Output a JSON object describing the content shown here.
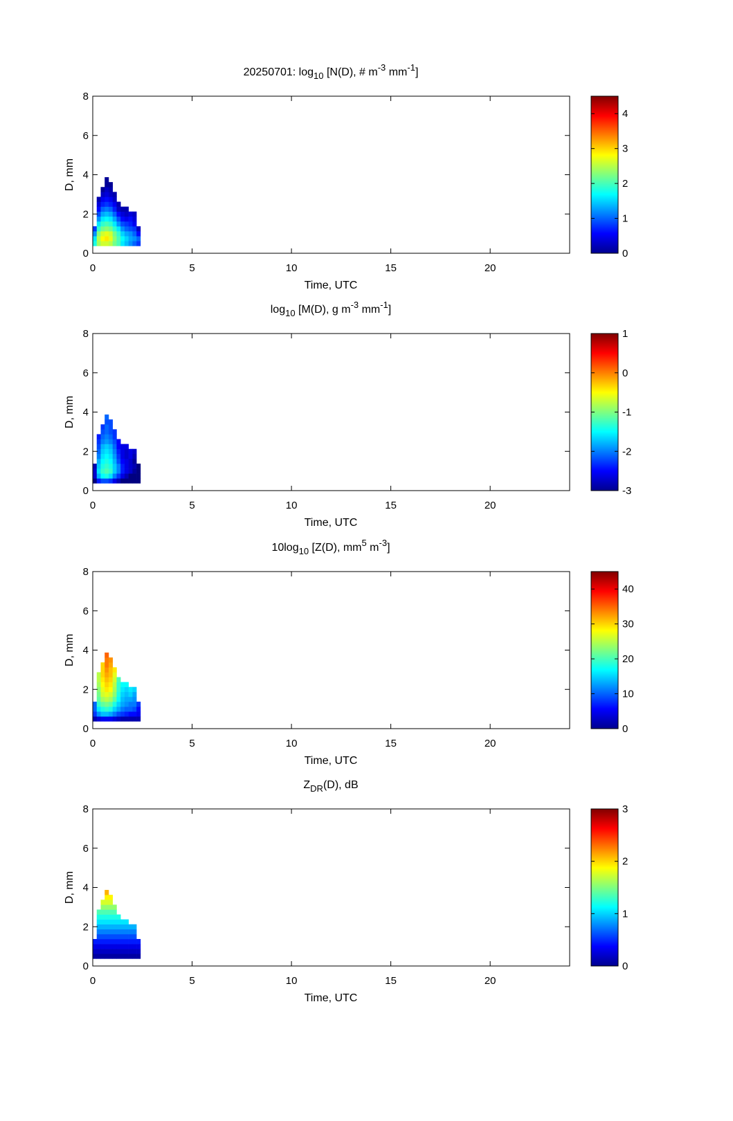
{
  "chart_data": [
    {
      "type": "heatmap",
      "title_parts": [
        {
          "t": "20250701: log"
        },
        {
          "t": "10",
          "sub": true
        },
        {
          "t": " [N(D), # m"
        },
        {
          "t": "-3",
          "sup": true
        },
        {
          "t": " mm"
        },
        {
          "t": "-1",
          "sup": true
        },
        {
          "t": "]"
        }
      ],
      "xlabel": "Time, UTC",
      "ylabel": "D, mm",
      "xlim": [
        0,
        24
      ],
      "ylim": [
        0,
        8
      ],
      "xticks": [
        0,
        5,
        10,
        15,
        20
      ],
      "yticks": [
        0,
        2,
        4,
        6,
        8
      ],
      "clim": [
        0,
        4.5
      ],
      "cticks": [
        0,
        1,
        2,
        3,
        4
      ],
      "colormap": "jet",
      "x_bin": 0.2,
      "y_bin": 0.25,
      "x": [
        0.1,
        0.3,
        0.5,
        0.7,
        0.9,
        1.1,
        1.3,
        1.5,
        1.7,
        1.9,
        2.1,
        2.3
      ],
      "y": [
        0.5,
        0.75,
        1.0,
        1.25,
        1.5,
        1.75,
        2.0,
        2.25,
        2.5,
        2.75,
        3.0,
        3.25,
        3.5,
        3.75
      ],
      "values": [
        [
          1.8,
          2.4,
          2.6,
          2.6,
          2.5,
          2.2,
          2.0,
          1.6,
          1.4,
          1.2,
          1.0,
          0.8
        ],
        [
          1.6,
          2.5,
          2.8,
          2.9,
          2.7,
          2.3,
          2.0,
          1.7,
          1.5,
          1.3,
          1.2,
          1.0
        ],
        [
          1.2,
          2.3,
          2.6,
          2.7,
          2.6,
          2.2,
          1.9,
          1.5,
          1.3,
          1.2,
          1.0,
          0.6
        ],
        [
          0.8,
          1.9,
          2.2,
          2.3,
          2.2,
          1.9,
          1.6,
          1.2,
          1.0,
          0.9,
          0.8,
          0.3
        ],
        [
          null,
          1.6,
          1.9,
          2.0,
          1.9,
          1.6,
          1.2,
          0.9,
          0.8,
          0.7,
          0.5,
          null
        ],
        [
          null,
          1.2,
          1.6,
          1.7,
          1.6,
          1.3,
          0.9,
          0.6,
          0.5,
          0.6,
          0.4,
          null
        ],
        [
          null,
          0.9,
          1.3,
          1.4,
          1.3,
          1.0,
          0.6,
          0.4,
          0.3,
          0.4,
          0.3,
          null
        ],
        [
          null,
          0.6,
          1.0,
          1.1,
          1.0,
          0.7,
          0.3,
          0.2,
          0.2,
          null,
          null,
          null
        ],
        [
          null,
          0.4,
          0.7,
          0.8,
          0.7,
          0.5,
          0.2,
          null,
          null,
          null,
          null,
          null
        ],
        [
          null,
          0.2,
          0.5,
          0.6,
          0.5,
          0.3,
          null,
          null,
          null,
          null,
          null,
          null
        ],
        [
          null,
          null,
          0.3,
          0.4,
          0.3,
          0.2,
          null,
          null,
          null,
          null,
          null,
          null
        ],
        [
          null,
          null,
          0.1,
          0.3,
          0.2,
          null,
          null,
          null,
          null,
          null,
          null,
          null
        ],
        [
          null,
          null,
          null,
          0.1,
          0.1,
          null,
          null,
          null,
          null,
          null,
          null,
          null
        ],
        [
          null,
          null,
          null,
          0.1,
          null,
          null,
          null,
          null,
          null,
          null,
          null,
          null
        ]
      ]
    },
    {
      "type": "heatmap",
      "title_parts": [
        {
          "t": "log"
        },
        {
          "t": "10",
          "sub": true
        },
        {
          "t": " [M(D), g m"
        },
        {
          "t": "-3",
          "sup": true
        },
        {
          "t": " mm"
        },
        {
          "t": "-1",
          "sup": true
        },
        {
          "t": "]"
        }
      ],
      "xlabel": "Time, UTC",
      "ylabel": "D, mm",
      "xlim": [
        0,
        24
      ],
      "ylim": [
        0,
        8
      ],
      "xticks": [
        0,
        5,
        10,
        15,
        20
      ],
      "yticks": [
        0,
        2,
        4,
        6,
        8
      ],
      "clim": [
        -3,
        1
      ],
      "cticks": [
        -3,
        -2,
        -1,
        0,
        1
      ],
      "colormap": "jet",
      "x_bin": 0.2,
      "y_bin": 0.25,
      "x": [
        0.1,
        0.3,
        0.5,
        0.7,
        0.9,
        1.1,
        1.3,
        1.5,
        1.7,
        1.9,
        2.1,
        2.3
      ],
      "y": [
        0.5,
        0.75,
        1.0,
        1.25,
        1.5,
        1.75,
        2.0,
        2.25,
        2.5,
        2.75,
        3.0,
        3.25,
        3.5,
        3.75
      ],
      "values": [
        [
          -3.0,
          -2.4,
          -2.2,
          -2.2,
          -2.3,
          -2.6,
          -2.8,
          -3.0,
          -3.0,
          -3.0,
          -3.0,
          -3.0
        ],
        [
          -2.7,
          -1.8,
          -1.5,
          -1.4,
          -1.6,
          -2.0,
          -2.3,
          -2.6,
          -2.8,
          -3.0,
          -3.0,
          -3.0
        ],
        [
          -2.7,
          -1.6,
          -1.3,
          -1.2,
          -1.3,
          -1.7,
          -2.0,
          -2.4,
          -2.6,
          -2.7,
          -2.9,
          -3.0
        ],
        [
          -2.8,
          -1.7,
          -1.4,
          -1.3,
          -1.4,
          -1.7,
          -2.0,
          -2.4,
          -2.6,
          -2.7,
          -2.8,
          -3.0
        ],
        [
          null,
          -1.8,
          -1.5,
          -1.4,
          -1.5,
          -1.8,
          -2.2,
          -2.5,
          -2.6,
          -2.7,
          -2.9,
          null
        ],
        [
          null,
          -2.0,
          -1.6,
          -1.5,
          -1.6,
          -1.9,
          -2.3,
          -2.6,
          -2.7,
          -2.6,
          -2.8,
          null
        ],
        [
          null,
          -2.1,
          -1.7,
          -1.6,
          -1.7,
          -2.0,
          -2.4,
          -2.6,
          -2.7,
          -2.6,
          -2.7,
          null
        ],
        [
          null,
          -2.2,
          -1.8,
          -1.7,
          -1.8,
          -2.1,
          -2.5,
          -2.6,
          -2.6,
          null,
          null,
          null
        ],
        [
          null,
          -2.3,
          -2.0,
          -1.9,
          -2.0,
          -2.2,
          -2.5,
          null,
          null,
          null,
          null,
          null
        ],
        [
          null,
          -2.4,
          -2.1,
          -2.0,
          -2.1,
          -2.3,
          null,
          null,
          null,
          null,
          null,
          null
        ],
        [
          null,
          null,
          -2.2,
          -2.1,
          -2.2,
          -2.3,
          null,
          null,
          null,
          null,
          null,
          null
        ],
        [
          null,
          null,
          -2.3,
          -2.1,
          -2.2,
          null,
          null,
          null,
          null,
          null,
          null,
          null
        ],
        [
          null,
          null,
          null,
          -2.2,
          -2.2,
          null,
          null,
          null,
          null,
          null,
          null,
          null
        ],
        [
          null,
          null,
          null,
          -2.1,
          null,
          null,
          null,
          null,
          null,
          null,
          null,
          null
        ]
      ]
    },
    {
      "type": "heatmap",
      "title_parts": [
        {
          "t": "10log"
        },
        {
          "t": "10",
          "sub": true
        },
        {
          "t": " [Z(D),  mm"
        },
        {
          "t": "5",
          "sup": true
        },
        {
          "t": " m"
        },
        {
          "t": "-3",
          "sup": true
        },
        {
          "t": "]"
        }
      ],
      "xlabel": "Time, UTC",
      "ylabel": "D, mm",
      "xlim": [
        0,
        24
      ],
      "ylim": [
        0,
        8
      ],
      "xticks": [
        0,
        5,
        10,
        15,
        20
      ],
      "yticks": [
        0,
        2,
        4,
        6,
        8
      ],
      "clim": [
        0,
        45
      ],
      "cticks": [
        0,
        10,
        20,
        30,
        40
      ],
      "colormap": "jet",
      "x_bin": 0.2,
      "y_bin": 0.25,
      "x": [
        0.1,
        0.3,
        0.5,
        0.7,
        0.9,
        1.1,
        1.3,
        1.5,
        1.7,
        1.9,
        2.1,
        2.3
      ],
      "y": [
        0.5,
        0.75,
        1.0,
        1.25,
        1.5,
        1.75,
        2.0,
        2.25,
        2.5,
        2.75,
        3.0,
        3.25,
        3.5,
        3.75
      ],
      "values": [
        [
          2,
          4,
          5,
          5,
          5,
          4,
          3,
          2,
          2,
          2,
          2,
          2
        ],
        [
          8,
          12,
          14,
          14,
          13,
          11,
          9,
          8,
          7,
          6,
          6,
          5
        ],
        [
          10,
          16,
          18,
          19,
          18,
          15,
          13,
          11,
          10,
          10,
          9,
          6
        ],
        [
          10,
          19,
          21,
          22,
          21,
          18,
          15,
          13,
          12,
          11,
          11,
          8
        ],
        [
          null,
          21,
          24,
          25,
          24,
          21,
          17,
          14,
          13,
          13,
          12,
          null
        ],
        [
          null,
          22,
          26,
          27,
          26,
          23,
          18,
          15,
          14,
          15,
          13,
          null
        ],
        [
          null,
          23,
          27,
          29,
          28,
          24,
          19,
          16,
          15,
          16,
          15,
          null
        ],
        [
          null,
          24,
          28,
          30,
          29,
          25,
          19,
          17,
          17,
          null,
          null,
          null
        ],
        [
          null,
          25,
          29,
          31,
          30,
          26,
          20,
          null,
          null,
          null,
          null,
          null
        ],
        [
          null,
          25,
          30,
          32,
          31,
          27,
          null,
          null,
          null,
          null,
          null,
          null
        ],
        [
          null,
          null,
          30,
          33,
          31,
          29,
          null,
          null,
          null,
          null,
          null,
          null
        ],
        [
          null,
          null,
          30,
          34,
          32,
          null,
          null,
          null,
          null,
          null,
          null,
          null
        ],
        [
          null,
          null,
          null,
          34,
          33,
          null,
          null,
          null,
          null,
          null,
          null,
          null
        ],
        [
          null,
          null,
          null,
          35,
          null,
          null,
          null,
          null,
          null,
          null,
          null,
          null
        ]
      ]
    },
    {
      "type": "heatmap",
      "title_parts": [
        {
          "t": "Z"
        },
        {
          "t": "DR",
          "sub": true
        },
        {
          "t": "(D), dB"
        }
      ],
      "xlabel": "Time, UTC",
      "ylabel": "D, mm",
      "xlim": [
        0,
        24
      ],
      "ylim": [
        0,
        8
      ],
      "xticks": [
        0,
        5,
        10,
        15,
        20
      ],
      "yticks": [
        0,
        2,
        4,
        6,
        8
      ],
      "clim": [
        0,
        3
      ],
      "cticks": [
        0,
        1,
        2,
        3
      ],
      "colormap": "jet",
      "x_bin": 0.2,
      "y_bin": 0.25,
      "x": [
        0.1,
        0.3,
        0.5,
        0.7,
        0.9,
        1.1,
        1.3,
        1.5,
        1.7,
        1.9,
        2.1,
        2.3
      ],
      "y": [
        0.5,
        0.75,
        1.0,
        1.25,
        1.5,
        1.75,
        2.0,
        2.25,
        2.5,
        2.75,
        3.0,
        3.25,
        3.5,
        3.75
      ],
      "values": [
        [
          0.1,
          0.1,
          0.1,
          0.1,
          0.1,
          0.1,
          0.1,
          0.1,
          0.1,
          0.1,
          0.1,
          0.1
        ],
        [
          0.2,
          0.2,
          0.2,
          0.2,
          0.2,
          0.2,
          0.2,
          0.2,
          0.2,
          0.2,
          0.2,
          0.2
        ],
        [
          0.3,
          0.3,
          0.3,
          0.3,
          0.3,
          0.3,
          0.3,
          0.3,
          0.3,
          0.3,
          0.3,
          0.3
        ],
        [
          0.45,
          0.45,
          0.45,
          0.45,
          0.45,
          0.45,
          0.45,
          0.45,
          0.45,
          0.45,
          0.45,
          0.45
        ],
        [
          null,
          0.6,
          0.6,
          0.6,
          0.6,
          0.6,
          0.6,
          0.6,
          0.6,
          0.6,
          0.6,
          null
        ],
        [
          null,
          0.75,
          0.75,
          0.75,
          0.75,
          0.75,
          0.75,
          0.75,
          0.75,
          0.75,
          0.75,
          null
        ],
        [
          null,
          0.9,
          0.9,
          0.9,
          0.9,
          0.9,
          0.9,
          0.9,
          0.9,
          0.9,
          0.9,
          null
        ],
        [
          null,
          1.05,
          1.05,
          1.05,
          1.05,
          1.05,
          1.05,
          1.05,
          1.05,
          null,
          null,
          null
        ],
        [
          null,
          1.2,
          1.2,
          1.2,
          1.2,
          1.2,
          1.2,
          null,
          null,
          null,
          null,
          null
        ],
        [
          null,
          1.35,
          1.35,
          1.35,
          1.35,
          1.35,
          null,
          null,
          null,
          null,
          null,
          null
        ],
        [
          null,
          null,
          1.55,
          1.55,
          1.55,
          1.55,
          null,
          null,
          null,
          null,
          null,
          null
        ],
        [
          null,
          null,
          1.75,
          1.75,
          1.75,
          null,
          null,
          null,
          null,
          null,
          null,
          null
        ],
        [
          null,
          null,
          null,
          1.9,
          1.9,
          null,
          null,
          null,
          null,
          null,
          null,
          null
        ],
        [
          null,
          null,
          null,
          2.1,
          null,
          null,
          null,
          null,
          null,
          null,
          null,
          null
        ]
      ]
    }
  ]
}
